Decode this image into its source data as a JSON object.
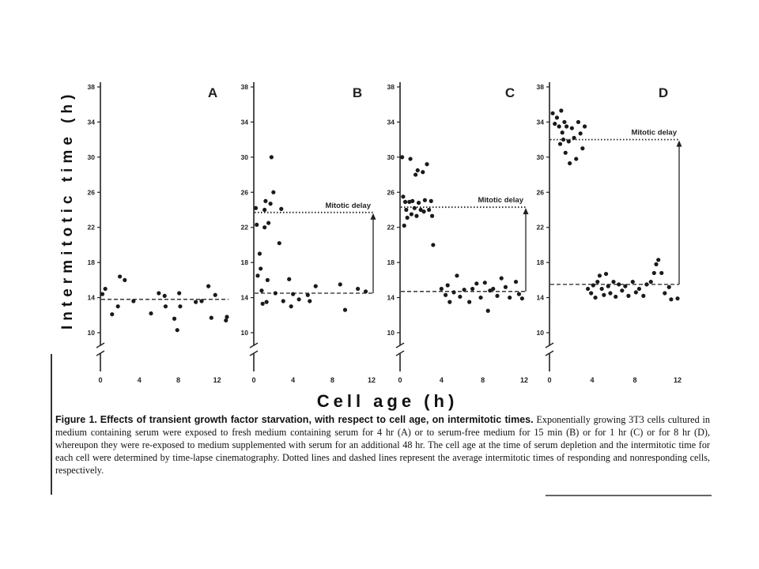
{
  "figure": {
    "ylabel": "Intermitotic time (h)",
    "xlabel": "Cell age (h)",
    "caption": {
      "label": "Figure 1.",
      "heading": "Effects of transient growth factor starvation, with respect to cell age, on intermitotic times.",
      "body": "Exponentially growing 3T3 cells cultured in medium containing serum were exposed to fresh medium containing serum for 4 hr (A) or to serum-free medium for 15 min (B) or for 1 hr (C) or for 8 hr (D), whereupon they were re-exposed to medium supplemented with serum for an additional 48 hr. The cell age at the time of serum depletion and the intermitotic time for each cell were determined by time-lapse cinematography. Dotted lines and dashed lines represent the average intermitotic times of responding and nonresponding cells, respectively."
    }
  },
  "chart_data": [
    {
      "type": "scatter",
      "panel": "A",
      "xlim": [
        0,
        13
      ],
      "ylim": [
        10,
        38
      ],
      "y_ticks": [
        "38",
        "34",
        "30",
        "26",
        "22",
        "18",
        "14",
        "10"
      ],
      "x_ticks": [
        "0",
        "4",
        "8",
        "12"
      ],
      "dashed_line_y": 13.8,
      "annotation": "",
      "points": [
        [
          0.2,
          14.4
        ],
        [
          0.5,
          15.0
        ],
        [
          1.2,
          12.1
        ],
        [
          1.8,
          13.0
        ],
        [
          2.0,
          16.4
        ],
        [
          2.5,
          16.0
        ],
        [
          3.4,
          13.6
        ],
        [
          5.2,
          12.2
        ],
        [
          6.0,
          14.5
        ],
        [
          6.6,
          14.2
        ],
        [
          6.7,
          13.0
        ],
        [
          7.6,
          11.6
        ],
        [
          7.9,
          10.3
        ],
        [
          8.1,
          14.5
        ],
        [
          8.2,
          13.0
        ],
        [
          9.8,
          13.5
        ],
        [
          10.4,
          13.6
        ],
        [
          11.1,
          15.3
        ],
        [
          11.4,
          11.7
        ],
        [
          11.8,
          14.3
        ],
        [
          12.9,
          11.4
        ],
        [
          13.0,
          11.8
        ]
      ]
    },
    {
      "type": "scatter",
      "panel": "B",
      "xlim": [
        0,
        12
      ],
      "ylim": [
        10,
        38
      ],
      "y_ticks": [
        "38",
        "34",
        "30",
        "26",
        "22",
        "18",
        "14",
        "10"
      ],
      "x_ticks": [
        "0",
        "4",
        "8",
        "12"
      ],
      "dotted_line_y": 23.7,
      "dashed_line_y": 14.5,
      "annotation": "Mitotic delay",
      "points": [
        [
          0.2,
          24.2
        ],
        [
          0.3,
          22.3
        ],
        [
          0.4,
          16.5
        ],
        [
          0.6,
          19.0
        ],
        [
          0.7,
          17.3
        ],
        [
          0.8,
          14.8
        ],
        [
          0.9,
          13.3
        ],
        [
          1.1,
          24.0
        ],
        [
          1.1,
          22.0
        ],
        [
          1.2,
          25.0
        ],
        [
          1.3,
          13.5
        ],
        [
          1.4,
          16.0
        ],
        [
          1.5,
          22.5
        ],
        [
          1.7,
          24.7
        ],
        [
          1.8,
          30.0
        ],
        [
          2.0,
          26.0
        ],
        [
          2.2,
          14.5
        ],
        [
          2.6,
          20.2
        ],
        [
          2.8,
          24.1
        ],
        [
          3.0,
          13.6
        ],
        [
          3.6,
          16.1
        ],
        [
          3.8,
          13.0
        ],
        [
          4.0,
          14.4
        ],
        [
          4.6,
          13.8
        ],
        [
          5.5,
          14.3
        ],
        [
          5.7,
          13.6
        ],
        [
          6.3,
          15.3
        ],
        [
          8.8,
          15.5
        ],
        [
          9.3,
          12.6
        ],
        [
          10.6,
          15.0
        ],
        [
          11.4,
          14.7
        ]
      ]
    },
    {
      "type": "scatter",
      "panel": "C",
      "xlim": [
        0,
        12
      ],
      "ylim": [
        10,
        38
      ],
      "y_ticks": [
        "38",
        "34",
        "30",
        "26",
        "22",
        "18",
        "14",
        "10"
      ],
      "x_ticks": [
        "0",
        "4",
        "8",
        "12"
      ],
      "dotted_line_y": 24.3,
      "dashed_line_y": 14.7,
      "annotation": "Mitotic delay",
      "points": [
        [
          0.2,
          30.0
        ],
        [
          0.3,
          25.5
        ],
        [
          0.4,
          22.2
        ],
        [
          0.5,
          24.9
        ],
        [
          0.6,
          24.0
        ],
        [
          0.7,
          23.1
        ],
        [
          0.9,
          24.9
        ],
        [
          1.0,
          29.8
        ],
        [
          1.1,
          23.5
        ],
        [
          1.2,
          25.0
        ],
        [
          1.4,
          24.2
        ],
        [
          1.5,
          28.0
        ],
        [
          1.6,
          23.3
        ],
        [
          1.7,
          28.5
        ],
        [
          1.8,
          24.8
        ],
        [
          2.0,
          24.0
        ],
        [
          2.2,
          28.3
        ],
        [
          2.3,
          23.8
        ],
        [
          2.4,
          25.1
        ],
        [
          2.6,
          29.2
        ],
        [
          2.8,
          24.0
        ],
        [
          3.0,
          25.0
        ],
        [
          3.1,
          23.3
        ],
        [
          3.2,
          20.0
        ],
        [
          4.0,
          15.0
        ],
        [
          4.4,
          14.3
        ],
        [
          4.6,
          15.4
        ],
        [
          4.8,
          13.5
        ],
        [
          5.2,
          14.6
        ],
        [
          5.5,
          16.5
        ],
        [
          5.8,
          14.1
        ],
        [
          6.2,
          14.9
        ],
        [
          6.7,
          13.5
        ],
        [
          7.0,
          15.0
        ],
        [
          7.4,
          15.6
        ],
        [
          7.8,
          14.0
        ],
        [
          8.2,
          15.7
        ],
        [
          8.5,
          12.5
        ],
        [
          8.7,
          14.8
        ],
        [
          9.0,
          15.0
        ],
        [
          9.4,
          14.2
        ],
        [
          9.8,
          16.2
        ],
        [
          10.2,
          15.2
        ],
        [
          10.6,
          14.0
        ],
        [
          11.2,
          15.8
        ],
        [
          11.5,
          14.4
        ],
        [
          11.8,
          13.9
        ]
      ]
    },
    {
      "type": "scatter",
      "panel": "D",
      "xlim": [
        0,
        12
      ],
      "ylim": [
        10,
        38
      ],
      "y_ticks": [
        "38",
        "34",
        "30",
        "26",
        "22",
        "18",
        "14",
        "10"
      ],
      "x_ticks": [
        "0",
        "4",
        "8",
        "12"
      ],
      "dotted_line_y": 32.0,
      "dashed_line_y": 15.5,
      "annotation": "Mitotic delay",
      "points": [
        [
          0.3,
          35.0
        ],
        [
          0.5,
          33.8
        ],
        [
          0.7,
          34.5
        ],
        [
          0.9,
          33.5
        ],
        [
          1.0,
          31.5
        ],
        [
          1.1,
          35.3
        ],
        [
          1.2,
          32.8
        ],
        [
          1.3,
          32.0
        ],
        [
          1.4,
          34.0
        ],
        [
          1.5,
          30.5
        ],
        [
          1.6,
          33.5
        ],
        [
          1.8,
          31.8
        ],
        [
          1.9,
          29.3
        ],
        [
          2.1,
          33.3
        ],
        [
          2.3,
          32.2
        ],
        [
          2.5,
          29.8
        ],
        [
          2.7,
          34.0
        ],
        [
          2.9,
          32.7
        ],
        [
          3.1,
          31.0
        ],
        [
          3.3,
          33.5
        ],
        [
          3.6,
          15.0
        ],
        [
          3.9,
          14.5
        ],
        [
          4.1,
          15.4
        ],
        [
          4.3,
          14.0
        ],
        [
          4.5,
          15.8
        ],
        [
          4.7,
          16.5
        ],
        [
          4.9,
          15.0
        ],
        [
          5.1,
          14.3
        ],
        [
          5.3,
          16.7
        ],
        [
          5.5,
          15.3
        ],
        [
          5.7,
          14.5
        ],
        [
          6.0,
          15.8
        ],
        [
          6.2,
          14.1
        ],
        [
          6.5,
          15.5
        ],
        [
          6.8,
          14.8
        ],
        [
          7.1,
          15.3
        ],
        [
          7.4,
          14.2
        ],
        [
          7.8,
          15.8
        ],
        [
          8.1,
          14.6
        ],
        [
          8.4,
          15.0
        ],
        [
          8.8,
          14.2
        ],
        [
          9.1,
          15.5
        ],
        [
          9.5,
          15.8
        ],
        [
          9.8,
          16.8
        ],
        [
          10.0,
          17.8
        ],
        [
          10.2,
          18.3
        ],
        [
          10.5,
          16.8
        ],
        [
          10.8,
          14.5
        ],
        [
          11.2,
          15.2
        ],
        [
          11.4,
          13.8
        ],
        [
          12.0,
          13.9
        ]
      ]
    }
  ]
}
